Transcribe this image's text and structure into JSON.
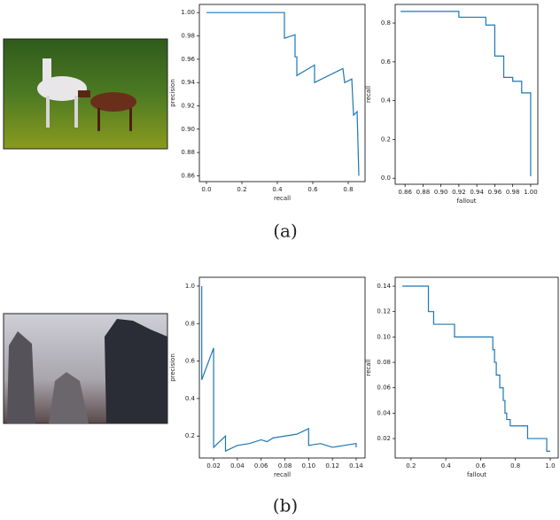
{
  "captions": [
    "(a)",
    "(b)"
  ],
  "chart_data": [
    {
      "type": "line",
      "xlabel": "recall",
      "ylabel": "precision",
      "color": "#1f77b4",
      "x": [
        0,
        0.44,
        0.44,
        0.5,
        0.5,
        0.51,
        0.51,
        0.61,
        0.61,
        0.77,
        0.78,
        0.82,
        0.83,
        0.85,
        0.86
      ],
      "values": [
        1.0,
        1.0,
        0.978,
        0.981,
        0.962,
        0.962,
        0.946,
        0.955,
        0.94,
        0.952,
        0.94,
        0.943,
        0.912,
        0.915,
        0.86
      ],
      "xlim": [
        -0.04,
        0.895
      ],
      "ylim": [
        0.855,
        1.007
      ],
      "xticks": [
        {
          "value": 0,
          "label": "0.0"
        },
        0.2,
        0.4,
        0.6,
        0.8
      ],
      "yticks": [
        0.86,
        0.88,
        {
          "value": 0.9,
          "label": "0.90"
        },
        0.92,
        0.94,
        0.96,
        0.98,
        {
          "value": 1,
          "label": "1.00"
        }
      ]
    },
    {
      "type": "line",
      "xlabel": "fallout",
      "ylabel": "recall",
      "color": "#1f77b4",
      "x": [
        0.855,
        0.92,
        0.92,
        0.95,
        0.95,
        0.96,
        0.96,
        0.97,
        0.97,
        0.98,
        0.98,
        0.99,
        0.99,
        1.0,
        1.0
      ],
      "values": [
        0.86,
        0.86,
        0.83,
        0.83,
        0.79,
        0.79,
        0.63,
        0.63,
        0.52,
        0.52,
        0.5,
        0.5,
        0.44,
        0.44,
        0.01
      ],
      "xlim": [
        0.849,
        1.008
      ],
      "ylim": [
        -0.031,
        0.896
      ],
      "xticks": [
        0.86,
        0.88,
        {
          "value": 0.9,
          "label": "0.90"
        },
        0.92,
        0.94,
        0.96,
        0.98,
        {
          "value": 1,
          "label": "1.00"
        }
      ],
      "yticks": [
        {
          "value": 0,
          "label": "0.0"
        },
        0.2,
        0.4,
        0.6,
        0.8
      ]
    },
    {
      "type": "line",
      "xlabel": "recall",
      "ylabel": "precision",
      "color": "#1f77b4",
      "x": [
        0.01,
        0.01,
        0.02,
        0.02,
        0.03,
        0.03,
        0.04,
        0.05,
        0.06,
        0.065,
        0.07,
        0.08,
        0.09,
        0.1,
        0.1,
        0.11,
        0.12,
        0.13,
        0.14,
        0.14
      ],
      "values": [
        1.0,
        0.5,
        0.67,
        0.14,
        0.2,
        0.12,
        0.15,
        0.16,
        0.18,
        0.17,
        0.19,
        0.2,
        0.21,
        0.24,
        0.15,
        0.16,
        0.14,
        0.15,
        0.16,
        0.14
      ],
      "xlim": [
        0.008,
        0.1475
      ],
      "ylim": [
        0.083,
        1.047
      ],
      "xticks": [
        0.02,
        0.04,
        0.06,
        0.08,
        {
          "value": 0.1,
          "label": "0.10"
        },
        0.12,
        0.14
      ],
      "yticks": [
        0.2,
        0.4,
        0.6,
        0.8,
        {
          "value": 1,
          "label": "1.0"
        }
      ]
    },
    {
      "type": "line",
      "xlabel": "fallout",
      "ylabel": "recall",
      "color": "#1f77b4",
      "x": [
        0.15,
        0.3,
        0.3,
        0.33,
        0.33,
        0.45,
        0.45,
        0.67,
        0.67,
        0.68,
        0.68,
        0.69,
        0.69,
        0.71,
        0.71,
        0.73,
        0.73,
        0.74,
        0.74,
        0.75,
        0.75,
        0.77,
        0.77,
        0.87,
        0.87,
        0.98,
        0.98,
        1.0
      ],
      "values": [
        0.14,
        0.14,
        0.12,
        0.12,
        0.11,
        0.11,
        0.1,
        0.1,
        0.09,
        0.09,
        0.08,
        0.08,
        0.07,
        0.07,
        0.06,
        0.06,
        0.05,
        0.05,
        0.04,
        0.04,
        0.035,
        0.035,
        0.03,
        0.03,
        0.02,
        0.02,
        0.01,
        0.01
      ],
      "xlim": [
        0.109,
        1.046
      ],
      "ylim": [
        0.0047,
        0.147
      ],
      "xticks": [
        0.2,
        0.4,
        0.6,
        0.8,
        {
          "value": 1,
          "label": "1.0"
        }
      ],
      "yticks": [
        0.02,
        0.04,
        0.06,
        0.08,
        {
          "value": 0.1,
          "label": "0.10"
        },
        0.12,
        0.14
      ]
    }
  ]
}
